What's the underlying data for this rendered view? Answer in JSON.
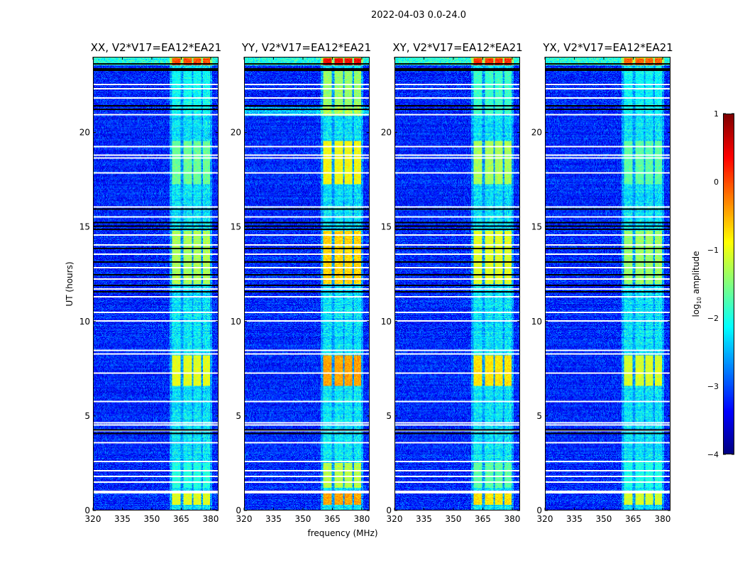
{
  "figure": {
    "suptitle": "2022-04-03 0.0-24.0"
  },
  "chart_data": {
    "type": "heatmap",
    "xlabel": "frequency (MHz)",
    "ylabel": "UT (hours)",
    "xlim": [
      320,
      384
    ],
    "ylim": [
      0,
      24
    ],
    "xticks": [
      "320",
      "335",
      "350",
      "365",
      "380"
    ],
    "xtick_values": [
      320,
      335,
      350,
      365,
      380
    ],
    "yticks": [
      "0",
      "5",
      "10",
      "15",
      "20"
    ],
    "ytick_values": [
      0,
      5,
      10,
      15,
      20
    ],
    "colorbar": {
      "label_main": "log",
      "label_sub": "10",
      "label_rest": " amplitude",
      "range": [
        -4,
        1
      ],
      "ticks": [
        "1",
        "0",
        "−1",
        "−2",
        "−3",
        "−4"
      ],
      "tick_values": [
        1,
        0,
        -1,
        -2,
        -3,
        -4
      ],
      "colormap": "jet"
    },
    "background_level": -3.2,
    "bright_channels_mhz": [
      [
        360.4,
        364.7
      ],
      [
        366,
        370.4
      ],
      [
        371.3,
        375.3
      ],
      [
        376.3,
        379.9
      ]
    ],
    "bright_intervals_hours": [
      {
        "range": [
          0.3,
          0.9
        ],
        "level": -1.0
      },
      {
        "range": [
          1.2,
          2.5
        ],
        "level": -2.0
      },
      {
        "range": [
          6.6,
          8.2
        ],
        "level": -1.0
      },
      {
        "range": [
          12.0,
          14.8
        ],
        "level": -1.3
      },
      {
        "range": [
          17.3,
          19.6
        ],
        "level": -1.6
      },
      {
        "range": [
          21.0,
          23.4
        ],
        "level": -2.2
      },
      {
        "range": [
          23.6,
          24.0
        ],
        "level": 0.0
      }
    ],
    "flagged_white_hours": [
      0.95,
      1.0,
      1.5,
      1.8,
      2.1,
      2.58,
      3.6,
      4.25,
      4.55,
      4.65,
      5.8,
      7.3,
      8.3,
      8.5,
      10.05,
      10.5,
      11.35,
      11.75,
      12.3,
      12.9,
      13.6,
      14.1,
      14.6,
      15.6,
      16.1,
      17.9,
      18.7,
      18.85,
      19.3,
      21.0,
      21.9,
      22.4,
      22.6
    ],
    "flagged_black_hours": [
      4.1,
      4.3,
      11.6,
      11.95,
      12.5,
      13.2,
      13.9,
      14.9,
      15.1,
      15.3,
      16.0,
      21.3,
      21.5,
      23.35,
      23.45,
      23.7
    ],
    "panels": [
      {
        "title": "XX, V2*V17=EA12*EA21",
        "hot_scale": 1.0
      },
      {
        "title": "YY, V2*V17=EA12*EA21",
        "hot_scale": 1.25
      },
      {
        "title": "XY, V2*V17=EA12*EA21",
        "hot_scale": 1.1
      },
      {
        "title": "YX, V2*V17=EA12*EA21",
        "hot_scale": 0.95
      }
    ]
  }
}
